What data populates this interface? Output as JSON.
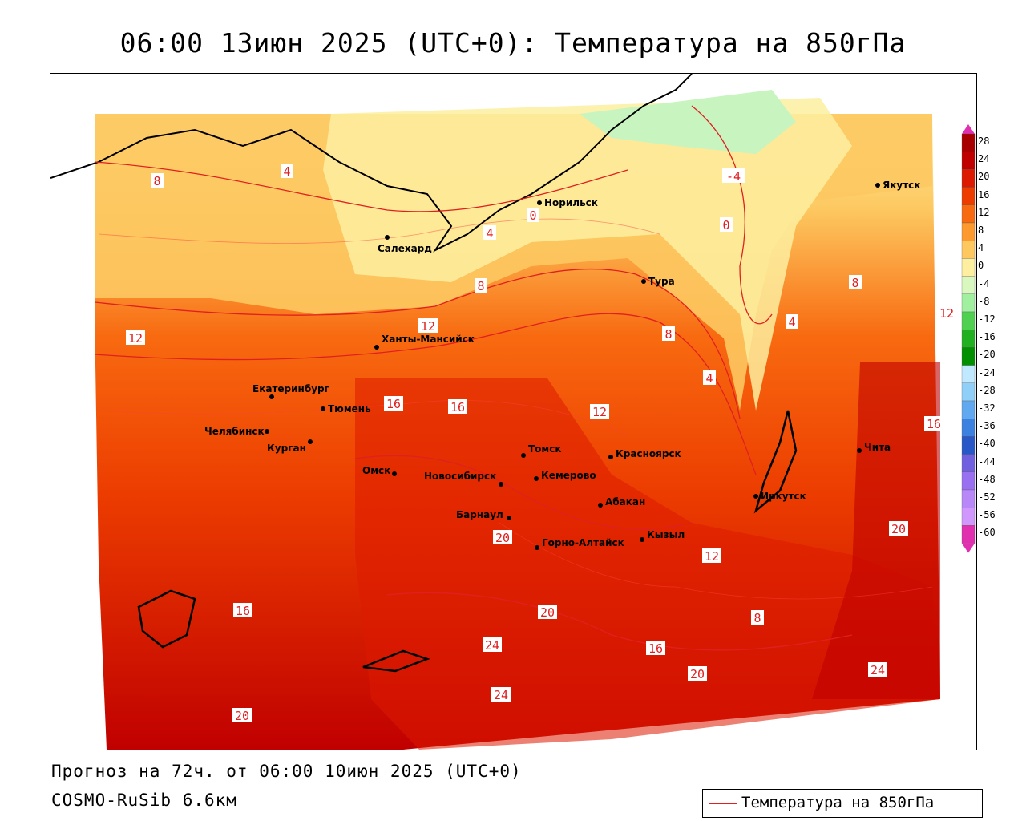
{
  "title": "06:00 13июн 2025 (UTC+0): Температура на 850гПа",
  "forecast_line": "Прогноз на 72ч. от 06:00 10июн 2025 (UTC+0)",
  "model_line": "COSMO-RuSib 6.6км",
  "legend": {
    "label": "Температура на 850гПа",
    "line_color": "#e02020"
  },
  "colorbar": {
    "ticks": [
      "28",
      "24",
      "20",
      "16",
      "12",
      "8",
      "4",
      "0",
      "-4",
      "-8",
      "-12",
      "-16",
      "-20",
      "-24",
      "-28",
      "-32",
      "-36",
      "-40",
      "-44",
      "-48",
      "-52",
      "-56",
      "-60"
    ],
    "colors": [
      "#a80000",
      "#c00000",
      "#dc1a00",
      "#ec3c00",
      "#f86a10",
      "#fc9a30",
      "#fdc860",
      "#fdeea0",
      "#d8f8c0",
      "#a0f0a0",
      "#50d050",
      "#20b020",
      "#009000",
      "#c0e8ff",
      "#90d0f8",
      "#60a8f0",
      "#3c80e0",
      "#2858c8",
      "#7060e0",
      "#9870f0",
      "#b888f8",
      "#d098fc",
      "#e030b0"
    ]
  },
  "cities": [
    {
      "name": "Якутск"
    },
    {
      "name": "Норильск"
    },
    {
      "name": "Салехард"
    },
    {
      "name": "Тура"
    },
    {
      "name": "Ханты-Мансийск"
    },
    {
      "name": "Екатеринбург"
    },
    {
      "name": "Тюмень"
    },
    {
      "name": "Челябинск"
    },
    {
      "name": "Курган"
    },
    {
      "name": "Томск"
    },
    {
      "name": "Красноярск"
    },
    {
      "name": "Омск"
    },
    {
      "name": "Новосибирск"
    },
    {
      "name": "Кемерово"
    },
    {
      "name": "Абакан"
    },
    {
      "name": "Иркутск"
    },
    {
      "name": "Чита"
    },
    {
      "name": "Барнаул"
    },
    {
      "name": "Горно-Алтайск"
    },
    {
      "name": "Кызыл"
    }
  ],
  "contour_labels": [
    "8",
    "4",
    "0",
    "4",
    "8",
    "12",
    "12",
    "16",
    "20",
    "24",
    "16",
    "20",
    "-4",
    "0",
    "4",
    "8",
    "12",
    "16",
    "20",
    "24",
    "20",
    "16",
    "12",
    "8",
    "4",
    "8",
    "12",
    "16",
    "20",
    "24"
  ]
}
